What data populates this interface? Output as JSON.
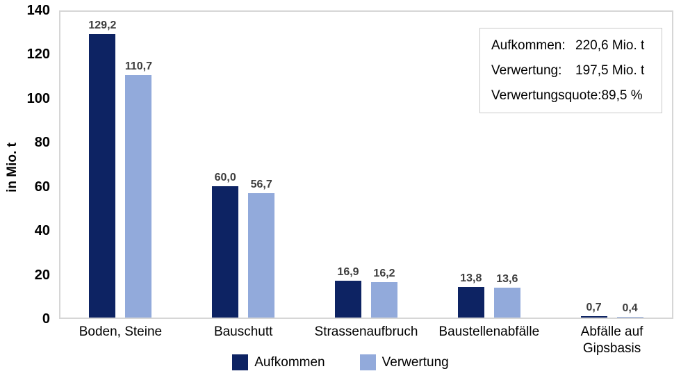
{
  "chart_data": {
    "type": "bar",
    "title": "",
    "ylabel": "in Mio. t",
    "xlabel": "",
    "ylim": [
      0,
      140
    ],
    "yticks": [
      0,
      20,
      40,
      60,
      80,
      100,
      120,
      140
    ],
    "grid": false,
    "legend_position": "bottom",
    "categories": [
      "Boden, Steine",
      "Bauschutt",
      "Strassenaufbruch",
      "Baustellenabfälle",
      "Abfälle auf Gipsbasis"
    ],
    "series": [
      {
        "name": "Aufkommen",
        "color": "#0d2363",
        "values": [
          129.2,
          60.0,
          16.9,
          13.8,
          0.7
        ],
        "value_labels": [
          "129,2",
          "60,0",
          "16,9",
          "13,8",
          "0,7"
        ]
      },
      {
        "name": "Verwertung",
        "color": "#92aadb",
        "values": [
          110.7,
          56.7,
          16.2,
          13.6,
          0.4
        ],
        "value_labels": [
          "110,7",
          "56,7",
          "16,2",
          "13,6",
          "0,4"
        ]
      }
    ]
  },
  "infobox": {
    "rows": [
      {
        "label": "Aufkommen:",
        "value": "220,6 Mio. t"
      },
      {
        "label": "Verwertung:",
        "value": "197,5 Mio. t"
      },
      {
        "label": "Verwertungsquote:",
        "value": "89,5 %"
      }
    ]
  },
  "colors": {
    "aufkommen": "#0d2363",
    "verwertung": "#92aadb",
    "plot_border": "#d6d6d6",
    "value_label_text": "#3d3d3d",
    "axis_text": "#000000",
    "background": "#ffffff"
  }
}
